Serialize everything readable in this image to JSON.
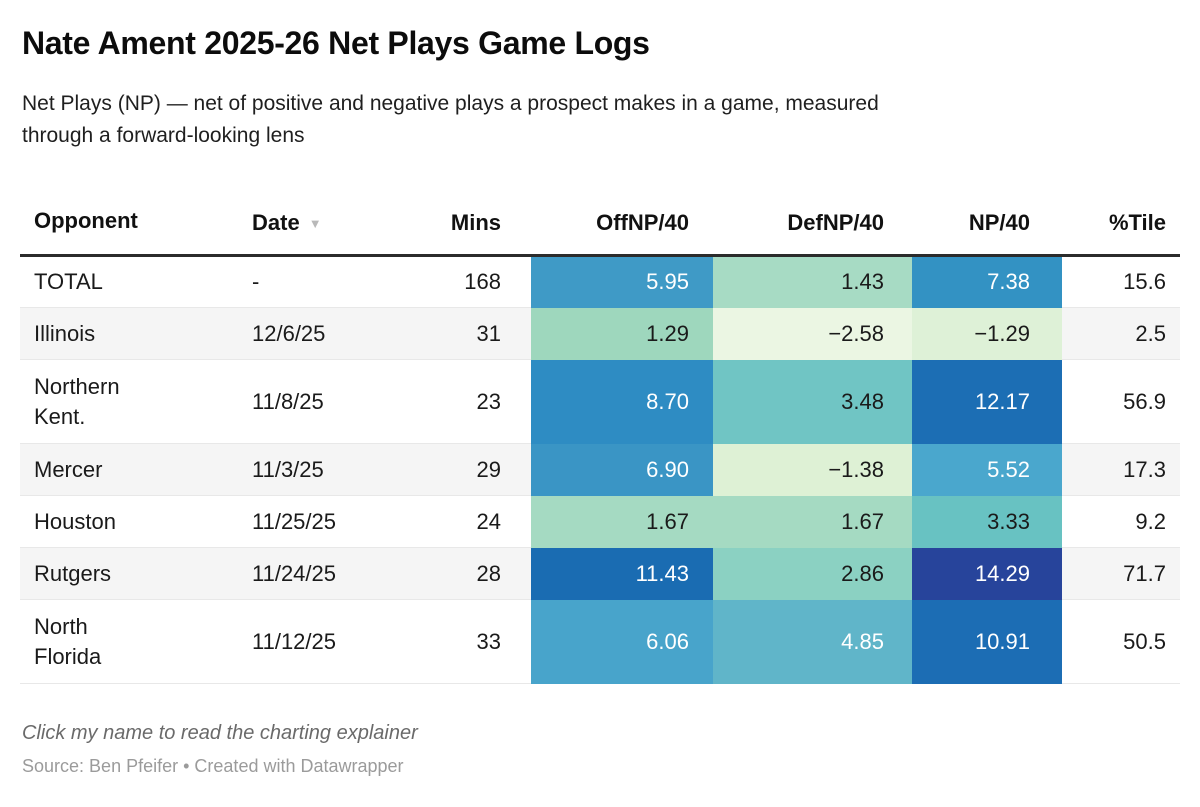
{
  "chart_data": {
    "type": "table",
    "title": "Nate Ament 2025-26 Net Plays Game Logs",
    "subtitle": "Net Plays (NP) — net of positive and negative plays a prospect makes in a game, measured\nthrough a forward-looking lens",
    "columns": [
      {
        "label": "Opponent",
        "align": "left"
      },
      {
        "label": "Date",
        "align": "left",
        "sorted": "desc",
        "sort_indicator": "▼"
      },
      {
        "label": "Mins",
        "align": "right"
      },
      {
        "label": "OffNP/40",
        "align": "right"
      },
      {
        "label": "DefNP/40",
        "align": "right"
      },
      {
        "label": "NP/40",
        "align": "right"
      },
      {
        "label": "%Tile",
        "align": "right"
      }
    ],
    "rows": [
      {
        "opponent": "TOTAL",
        "date": "-",
        "mins": "168",
        "off": {
          "v": "5.95",
          "bg": "#3f9ac6",
          "fg": "#ffffff"
        },
        "def": {
          "v": "1.43",
          "bg": "#a7dbc4",
          "fg": "#1a1a1a"
        },
        "np": {
          "v": "7.38",
          "bg": "#3392c3",
          "fg": "#ffffff"
        },
        "tile": "15.6"
      },
      {
        "opponent": "Illinois",
        "date": "12/6/25",
        "mins": "31",
        "off": {
          "v": "1.29",
          "bg": "#9ed7bd",
          "fg": "#1a1a1a"
        },
        "def": {
          "v": "−2.58",
          "bg": "#ebf6e3",
          "fg": "#1a1a1a"
        },
        "np": {
          "v": "−1.29",
          "bg": "#def1d7",
          "fg": "#1a1a1a"
        },
        "tile": "2.5"
      },
      {
        "opponent": "Northern\nKent.",
        "date": "11/8/25",
        "mins": "23",
        "off": {
          "v": "8.70",
          "bg": "#2e8cc3",
          "fg": "#ffffff"
        },
        "def": {
          "v": "3.48",
          "bg": "#70c5c4",
          "fg": "#1a1a1a"
        },
        "np": {
          "v": "12.17",
          "bg": "#1c6eb4",
          "fg": "#ffffff"
        },
        "tile": "56.9"
      },
      {
        "opponent": "Mercer",
        "date": "11/3/25",
        "mins": "29",
        "off": {
          "v": "6.90",
          "bg": "#3a95c5",
          "fg": "#ffffff"
        },
        "def": {
          "v": "−1.38",
          "bg": "#def1d5",
          "fg": "#1a1a1a"
        },
        "np": {
          "v": "5.52",
          "bg": "#4aa7cd",
          "fg": "#ffffff"
        },
        "tile": "17.3"
      },
      {
        "opponent": "Houston",
        "date": "11/25/25",
        "mins": "24",
        "off": {
          "v": "1.67",
          "bg": "#a5dac2",
          "fg": "#1a1a1a"
        },
        "def": {
          "v": "1.67",
          "bg": "#a5dac2",
          "fg": "#1a1a1a"
        },
        "np": {
          "v": "3.33",
          "bg": "#68c2c2",
          "fg": "#1a1a1a"
        },
        "tile": "9.2"
      },
      {
        "opponent": "Rutgers",
        "date": "11/24/25",
        "mins": "28",
        "off": {
          "v": "11.43",
          "bg": "#1a6cb2",
          "fg": "#ffffff"
        },
        "def": {
          "v": "2.86",
          "bg": "#8bd1c2",
          "fg": "#1a1a1a"
        },
        "np": {
          "v": "14.29",
          "bg": "#27449b",
          "fg": "#ffffff"
        },
        "tile": "71.7"
      },
      {
        "opponent": "North\nFlorida",
        "date": "11/12/25",
        "mins": "33",
        "off": {
          "v": "6.06",
          "bg": "#48a4cb",
          "fg": "#ffffff"
        },
        "def": {
          "v": "4.85",
          "bg": "#60b5c9",
          "fg": "#ffffff"
        },
        "np": {
          "v": "10.91",
          "bg": "#1c6db4",
          "fg": "#ffffff"
        },
        "tile": "50.5"
      }
    ],
    "legend_position": "none",
    "heat_palette": {
      "low": "#ebf6e3",
      "mid": "#70c5c4",
      "high": "#27449b"
    }
  },
  "footer": {
    "note": "Click my name to read the charting explainer",
    "source_prefix": "Source: ",
    "source_name": "Ben Pfeifer",
    "separator": " • ",
    "created_with": "Created with ",
    "tool_name": "Datawrapper"
  }
}
